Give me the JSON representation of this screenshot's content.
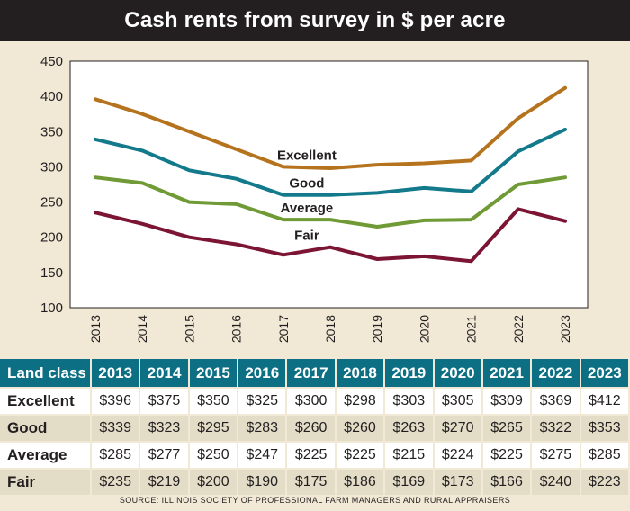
{
  "title": "Cash rents from survey in $ per acre",
  "chart_data": {
    "type": "line",
    "categories": [
      "2013",
      "2014",
      "2015",
      "2016",
      "2017",
      "2018",
      "2019",
      "2020",
      "2021",
      "2022",
      "2023"
    ],
    "series": [
      {
        "name": "Excellent",
        "color": "#b5731d",
        "values": [
          396,
          375,
          350,
          325,
          300,
          298,
          303,
          305,
          309,
          369,
          412
        ]
      },
      {
        "name": "Good",
        "color": "#137a8c",
        "values": [
          339,
          323,
          295,
          283,
          260,
          260,
          263,
          270,
          265,
          322,
          353
        ]
      },
      {
        "name": "Average",
        "color": "#6f9a35",
        "values": [
          285,
          277,
          250,
          247,
          225,
          225,
          215,
          224,
          225,
          275,
          285
        ]
      },
      {
        "name": "Fair",
        "color": "#7c1434",
        "values": [
          235,
          219,
          200,
          190,
          175,
          186,
          169,
          173,
          166,
          240,
          223
        ]
      }
    ],
    "ylim": [
      100,
      450
    ],
    "yticks": [
      100,
      150,
      200,
      250,
      300,
      350,
      400,
      450
    ],
    "grid": false
  },
  "table": {
    "header": [
      "Land class",
      "2013",
      "2014",
      "2015",
      "2016",
      "2017",
      "2018",
      "2019",
      "2020",
      "2021",
      "2022",
      "2023"
    ],
    "rows": [
      [
        "Excellent",
        "$396",
        "$375",
        "$350",
        "$325",
        "$300",
        "$298",
        "$303",
        "$305",
        "$309",
        "$369",
        "$412"
      ],
      [
        "Good",
        "$339",
        "$323",
        "$295",
        "$283",
        "$260",
        "$260",
        "$263",
        "$270",
        "$265",
        "$322",
        "$353"
      ],
      [
        "Average",
        "$285",
        "$277",
        "$250",
        "$247",
        "$225",
        "$225",
        "$215",
        "$224",
        "$225",
        "$275",
        "$285"
      ],
      [
        "Fair",
        "$235",
        "$219",
        "$200",
        "$190",
        "$175",
        "$186",
        "$169",
        "$173",
        "$166",
        "$240",
        "$223"
      ]
    ]
  },
  "source": "SOURCE: ILLINOIS SOCIETY OF PROFESSIONAL FARM MANAGERS AND RURAL APPRAISERS"
}
